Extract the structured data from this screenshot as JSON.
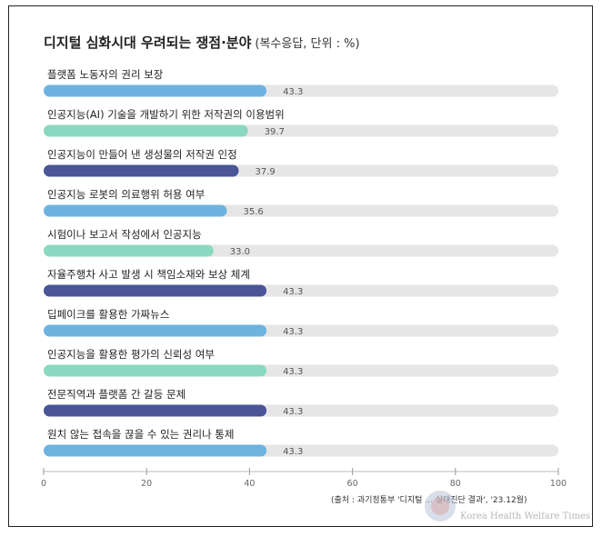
{
  "title": "디지털 심화시대 우려되는 쟁점·분야",
  "subtitle": "(복수응답, 단위 : %)",
  "note": "(출처 : 과기정통부 '디지털 ... 실태진단 결과', '23.12월)",
  "watermark": {
    "text": "Korea Health Welfare Times"
  },
  "colors": {
    "blue": "#6db3e0",
    "teal": "#8bd8c0",
    "navy": "#4a5597",
    "track": "#e6e6e6",
    "value": "#555555"
  },
  "chart_data": {
    "type": "bar",
    "orientation": "horizontal",
    "title": "디지털 심화시대 우려되는 쟁점·분야",
    "xlim": [
      0,
      100
    ],
    "xticks": [
      0,
      20,
      40,
      60,
      80,
      100
    ],
    "grid": false,
    "categories": [
      "플랫폼 노동자의 권리 보장",
      "인공지능(AI) 기술을 개발하기 위한 저작권의 이용범위",
      "인공지능이 만들어 낸 생성물의 저작권 인정",
      "인공지능 로봇의 의료행위 허용 여부",
      "시험이나 보고서 작성에서 인공지능",
      "자율주행차 사고 발생 시 책임소재와 보상 체계",
      "딥페이크를 활용한 가짜뉴스",
      "인공지능을 활용한 평가의 신뢰성 여부",
      "전문직역과 플랫폼 간 갈등 문제",
      "원치 않는 접속을 끊을 수 있는 권리나 통제"
    ],
    "values": [
      43.3,
      39.7,
      37.9,
      35.6,
      33.0,
      43.3,
      43.3,
      43.3,
      43.3,
      43.3
    ],
    "value_labels": [
      "43.3",
      "39.7",
      "37.9",
      "35.6",
      "33.0",
      "43.3",
      "43.3",
      "43.3",
      "43.3",
      "43.3"
    ],
    "bar_colors": [
      "blue",
      "teal",
      "navy",
      "blue",
      "teal",
      "navy",
      "blue",
      "teal",
      "navy",
      "blue"
    ]
  }
}
